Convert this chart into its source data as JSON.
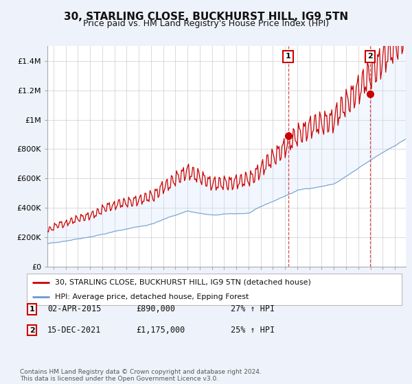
{
  "title": "30, STARLING CLOSE, BUCKHURST HILL, IG9 5TN",
  "subtitle": "Price paid vs. HM Land Registry's House Price Index (HPI)",
  "ylim": [
    0,
    1500000
  ],
  "yticks": [
    0,
    200000,
    400000,
    600000,
    800000,
    1000000,
    1200000,
    1400000
  ],
  "ytick_labels": [
    "£0",
    "£200K",
    "£400K",
    "£600K",
    "£800K",
    "£1M",
    "£1.2M",
    "£1.4M"
  ],
  "x_start_year": 1995,
  "x_end_year": 2025,
  "sale1_date": 2015.25,
  "sale1_price": 890000,
  "sale2_date": 2021.96,
  "sale2_price": 1175000,
  "red_line_color": "#cc0000",
  "blue_line_color": "#6699cc",
  "fill_color": "#cce0ff",
  "background_color": "#eef2fa",
  "plot_bg_color": "#ffffff",
  "grid_color": "#cccccc",
  "legend_line1": "30, STARLING CLOSE, BUCKHURST HILL, IG9 5TN (detached house)",
  "legend_line2": "HPI: Average price, detached house, Epping Forest",
  "footer": "Contains HM Land Registry data © Crown copyright and database right 2024.\nThis data is licensed under the Open Government Licence v3.0.",
  "title_fontsize": 11,
  "subtitle_fontsize": 9
}
